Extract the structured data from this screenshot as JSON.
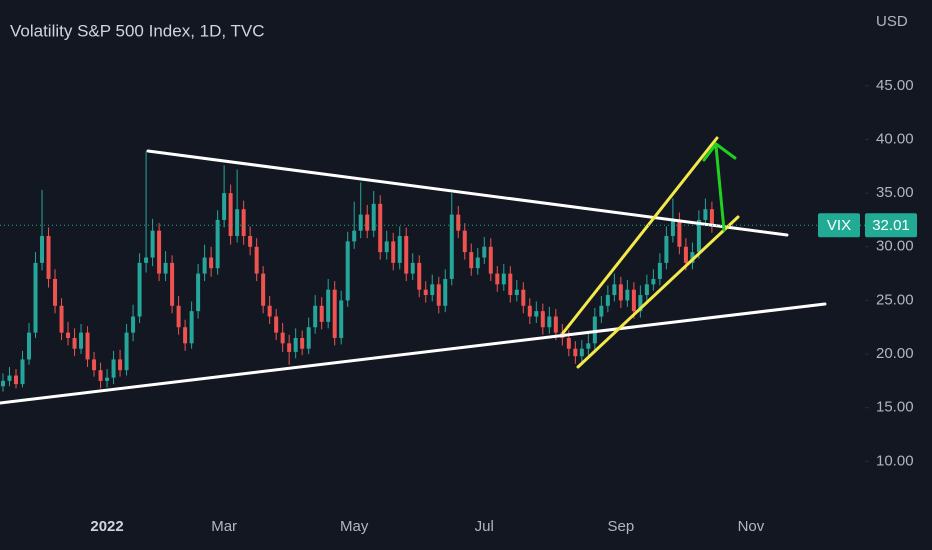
{
  "chart_data": {
    "type": "candlestick",
    "title": "Volatility S&P 500 Index, 1D, TVC",
    "y_axis_unit": "USD",
    "up_color": "#26a69a",
    "down_color": "#ef5350",
    "ylim": [
      5,
      53
    ],
    "yticks": [
      {
        "value": 10,
        "label": "10.00"
      },
      {
        "value": 15,
        "label": "15.00"
      },
      {
        "value": 20,
        "label": "20.00"
      },
      {
        "value": 25,
        "label": "25.00"
      },
      {
        "value": 30,
        "label": "30.00"
      },
      {
        "value": 35,
        "label": "35.00"
      },
      {
        "value": 40,
        "label": "40.00"
      },
      {
        "value": 45,
        "label": "45.00"
      }
    ],
    "grid": false,
    "price_label": "VIX",
    "last_price": 32.01,
    "categories": [
      null,
      null,
      null,
      null,
      null,
      null,
      null,
      null,
      null,
      null,
      null,
      null,
      null,
      null,
      null,
      null,
      "2022",
      null,
      null,
      null,
      null,
      null,
      null,
      null,
      null,
      null,
      null,
      null,
      null,
      null,
      null,
      null,
      null,
      null,
      "Mar",
      null,
      null,
      null,
      null,
      null,
      null,
      null,
      null,
      null,
      null,
      null,
      null,
      null,
      null,
      null,
      null,
      null,
      null,
      null,
      "May",
      null,
      null,
      null,
      null,
      null,
      null,
      null,
      null,
      null,
      null,
      null,
      null,
      null,
      null,
      null,
      null,
      null,
      null,
      null,
      "Jul",
      null,
      null,
      null,
      null,
      null,
      null,
      null,
      null,
      null,
      null,
      null,
      null,
      null,
      null,
      null,
      null,
      null,
      null,
      null,
      null,
      "Sep",
      null,
      null,
      null,
      null,
      null,
      null,
      null,
      null,
      null,
      null,
      null,
      null,
      null,
      null,
      null,
      null,
      null,
      null,
      null,
      "Nov",
      null,
      null,
      null,
      null,
      null,
      null,
      null,
      null,
      null,
      null,
      null,
      null,
      null,
      null,
      null,
      null,
      null
    ],
    "candles": [
      [
        17.0,
        18.2,
        16.5,
        17.5
      ],
      [
        17.5,
        18.8,
        17.0,
        18.0
      ],
      [
        18.0,
        18.6,
        16.8,
        17.2
      ],
      [
        17.2,
        20.3,
        16.9,
        19.5
      ],
      [
        19.5,
        22.9,
        19.0,
        22.0
      ],
      [
        22.0,
        29.5,
        21.5,
        28.5
      ],
      [
        28.5,
        35.3,
        27.8,
        31.0
      ],
      [
        31.0,
        31.8,
        26.2,
        27.0
      ],
      [
        27.0,
        27.9,
        23.8,
        24.5
      ],
      [
        24.5,
        25.2,
        21.3,
        22.0
      ],
      [
        22.0,
        23.0,
        20.8,
        21.5
      ],
      [
        21.5,
        22.4,
        19.8,
        20.5
      ],
      [
        20.5,
        22.8,
        20.0,
        22.0
      ],
      [
        22.0,
        22.6,
        18.8,
        19.5
      ],
      [
        19.5,
        20.2,
        17.9,
        18.5
      ],
      [
        18.5,
        19.2,
        16.8,
        17.5
      ],
      [
        17.5,
        18.6,
        16.9,
        17.8
      ],
      [
        17.8,
        20.3,
        17.2,
        19.5
      ],
      [
        19.5,
        20.4,
        17.9,
        18.5
      ],
      [
        18.5,
        22.8,
        18.0,
        22.0
      ],
      [
        22.0,
        24.6,
        21.2,
        23.5
      ],
      [
        23.5,
        29.4,
        22.9,
        28.5
      ],
      [
        28.5,
        38.9,
        27.6,
        29.0
      ],
      [
        29.0,
        32.6,
        28.2,
        31.5
      ],
      [
        31.5,
        32.2,
        26.8,
        27.5
      ],
      [
        27.5,
        29.6,
        26.8,
        28.5
      ],
      [
        28.5,
        29.2,
        23.8,
        24.5
      ],
      [
        24.5,
        25.4,
        21.8,
        22.5
      ],
      [
        22.5,
        23.2,
        20.3,
        21.0
      ],
      [
        21.0,
        24.9,
        20.5,
        24.0
      ],
      [
        24.0,
        28.4,
        23.3,
        27.5
      ],
      [
        27.5,
        30.2,
        26.8,
        29.0
      ],
      [
        29.0,
        30.0,
        27.2,
        28.0
      ],
      [
        28.0,
        33.4,
        27.4,
        32.5
      ],
      [
        32.5,
        37.6,
        31.8,
        35.0
      ],
      [
        35.0,
        35.8,
        30.2,
        31.0
      ],
      [
        31.0,
        37.2,
        30.4,
        33.5
      ],
      [
        33.5,
        34.3,
        30.2,
        31.0
      ],
      [
        31.0,
        31.9,
        29.2,
        30.0
      ],
      [
        30.0,
        30.8,
        26.8,
        27.5
      ],
      [
        27.5,
        28.2,
        23.8,
        24.5
      ],
      [
        24.5,
        25.4,
        22.8,
        23.5
      ],
      [
        23.5,
        24.2,
        21.3,
        22.0
      ],
      [
        22.0,
        22.9,
        20.2,
        21.0
      ],
      [
        21.0,
        21.8,
        19.0,
        20.2
      ],
      [
        20.2,
        22.4,
        19.6,
        21.5
      ],
      [
        21.5,
        22.2,
        19.9,
        20.5
      ],
      [
        20.5,
        23.4,
        20.0,
        22.5
      ],
      [
        22.5,
        25.5,
        21.9,
        24.5
      ],
      [
        24.5,
        25.3,
        22.3,
        23.0
      ],
      [
        23.0,
        27.0,
        22.4,
        26.0
      ],
      [
        26.0,
        26.8,
        20.8,
        21.5
      ],
      [
        21.5,
        25.9,
        20.9,
        25.0
      ],
      [
        25.0,
        31.4,
        24.4,
        30.5
      ],
      [
        30.5,
        34.2,
        29.8,
        31.5
      ],
      [
        31.5,
        36.0,
        30.8,
        33.0
      ],
      [
        33.0,
        33.9,
        30.8,
        31.5
      ],
      [
        31.5,
        35.2,
        30.9,
        34.0
      ],
      [
        34.0,
        34.8,
        28.8,
        29.5
      ],
      [
        29.5,
        31.5,
        28.8,
        30.5
      ],
      [
        30.5,
        31.3,
        27.8,
        28.5
      ],
      [
        28.5,
        31.9,
        27.9,
        31.0
      ],
      [
        31.0,
        31.8,
        26.8,
        27.5
      ],
      [
        27.5,
        29.4,
        26.9,
        28.5
      ],
      [
        28.5,
        29.2,
        25.3,
        26.0
      ],
      [
        26.0,
        26.8,
        24.8,
        25.5
      ],
      [
        25.5,
        27.4,
        24.9,
        26.5
      ],
      [
        26.5,
        27.2,
        23.8,
        24.5
      ],
      [
        24.5,
        27.9,
        23.9,
        27.0
      ],
      [
        27.0,
        35.0,
        26.4,
        33.0
      ],
      [
        33.0,
        33.8,
        30.8,
        31.5
      ],
      [
        31.5,
        32.2,
        28.8,
        29.5
      ],
      [
        29.5,
        30.3,
        27.3,
        28.0
      ],
      [
        28.0,
        29.9,
        27.4,
        29.0
      ],
      [
        29.0,
        30.9,
        28.4,
        30.0
      ],
      [
        30.0,
        30.8,
        26.8,
        27.5
      ],
      [
        27.5,
        28.2,
        25.8,
        26.5
      ],
      [
        26.5,
        28.4,
        25.9,
        27.5
      ],
      [
        27.5,
        28.2,
        24.8,
        25.5
      ],
      [
        25.5,
        26.9,
        24.9,
        26.0
      ],
      [
        26.0,
        26.7,
        23.8,
        24.5
      ],
      [
        24.5,
        25.2,
        22.8,
        23.5
      ],
      [
        23.5,
        24.9,
        22.9,
        24.0
      ],
      [
        24.0,
        24.7,
        21.8,
        22.5
      ],
      [
        22.5,
        24.4,
        21.9,
        23.5
      ],
      [
        23.5,
        24.2,
        21.3,
        22.0
      ],
      [
        22.0,
        22.8,
        20.8,
        21.5
      ],
      [
        21.5,
        22.2,
        19.8,
        20.5
      ],
      [
        20.5,
        21.2,
        19.1,
        19.8
      ],
      [
        19.8,
        21.3,
        19.2,
        20.5
      ],
      [
        20.5,
        21.9,
        19.9,
        21.0
      ],
      [
        21.0,
        24.3,
        20.4,
        23.5
      ],
      [
        23.5,
        25.4,
        22.9,
        24.5
      ],
      [
        24.5,
        26.4,
        23.9,
        25.5
      ],
      [
        25.5,
        27.5,
        24.9,
        26.5
      ],
      [
        26.5,
        27.2,
        24.3,
        25.0
      ],
      [
        25.0,
        26.9,
        24.4,
        26.0
      ],
      [
        26.0,
        26.7,
        23.3,
        24.0
      ],
      [
        24.0,
        26.4,
        23.4,
        25.5
      ],
      [
        25.5,
        27.4,
        24.9,
        26.5
      ],
      [
        26.5,
        27.9,
        25.9,
        27.0
      ],
      [
        27.0,
        29.4,
        26.4,
        28.5
      ],
      [
        28.5,
        31.9,
        27.9,
        31.0
      ],
      [
        31.0,
        34.5,
        30.4,
        32.5
      ],
      [
        32.5,
        33.2,
        29.3,
        30.0
      ],
      [
        30.0,
        30.8,
        27.8,
        28.5
      ],
      [
        28.5,
        30.4,
        27.9,
        29.5
      ],
      [
        29.5,
        33.4,
        28.9,
        32.5
      ],
      [
        32.5,
        34.5,
        31.9,
        33.5
      ],
      [
        33.5,
        34.2,
        31.3,
        32.01
      ],
      null,
      null,
      null,
      null,
      null,
      null,
      null,
      null,
      null,
      null,
      null,
      null,
      null,
      null,
      null,
      null,
      null,
      null,
      null,
      null,
      null,
      null,
      null
    ]
  }
}
